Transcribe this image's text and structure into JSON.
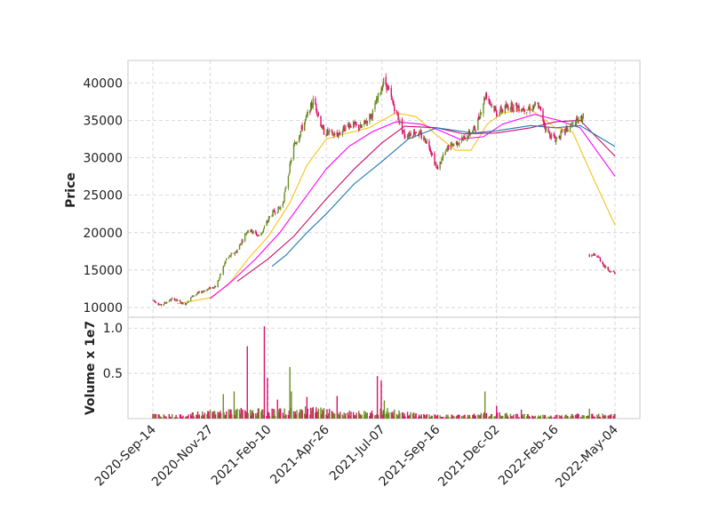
{
  "chart_data": {
    "type": "candlestick",
    "panels": [
      "price",
      "volume"
    ],
    "ylabel": "Price",
    "volume_ylabel": "Volume x 1e7",
    "x_ticks": [
      "2020-Sep-14",
      "2020-Nov-27",
      "2021-Feb-10",
      "2021-Apr-26",
      "2021-Jul-07",
      "2021-Sep-16",
      "2021-Dec-02",
      "2022-Feb-16",
      "2022-May-04"
    ],
    "y_ticks": [
      10000,
      15000,
      20000,
      25000,
      30000,
      35000,
      40000
    ],
    "ylim": [
      8700,
      43000
    ],
    "volume_ticks": [
      0.5,
      1.0
    ],
    "volume_ylim": [
      0,
      1.12
    ],
    "grid": true,
    "colors": {
      "up": "#6b8e23",
      "down": "#e0106e",
      "ma_short": "#f5c518",
      "ma_mid": "#ff00ff",
      "ma_long": "#c8106e",
      "ma_longest": "#1f77b4",
      "grid": "#cfcfcf",
      "frame": "#dcdcdc"
    },
    "price_path": [
      {
        "t": "2020-Sep-14",
        "v": 11000
      },
      {
        "t": "2020-Sep-24",
        "v": 10300
      },
      {
        "t": "2020-Oct-10",
        "v": 11200
      },
      {
        "t": "2020-Oct-25",
        "v": 10400
      },
      {
        "t": "2020-Nov-05",
        "v": 11600
      },
      {
        "t": "2020-Nov-20",
        "v": 12300
      },
      {
        "t": "2020-Dec-05",
        "v": 12900
      },
      {
        "t": "2020-Dec-18",
        "v": 16500
      },
      {
        "t": "2020-Dec-31",
        "v": 17500
      },
      {
        "t": "2021-Jan-15",
        "v": 20500
      },
      {
        "t": "2021-Jan-30",
        "v": 19500
      },
      {
        "t": "2021-Feb-14",
        "v": 22500
      },
      {
        "t": "2021-Feb-28",
        "v": 23500
      },
      {
        "t": "2021-Mar-15",
        "v": 31500
      },
      {
        "t": "2021-Mar-30",
        "v": 35000
      },
      {
        "t": "2021-Apr-10",
        "v": 37800
      },
      {
        "t": "2021-Apr-22",
        "v": 33500
      },
      {
        "t": "2021-May-10",
        "v": 33000
      },
      {
        "t": "2021-May-25",
        "v": 34500
      },
      {
        "t": "2021-Jun-10",
        "v": 34000
      },
      {
        "t": "2021-Jun-25",
        "v": 36000
      },
      {
        "t": "2021-Jul-10",
        "v": 40500
      },
      {
        "t": "2021-Jul-22",
        "v": 37000
      },
      {
        "t": "2021-Aug-05",
        "v": 33000
      },
      {
        "t": "2021-Aug-20",
        "v": 33500
      },
      {
        "t": "2021-Sep-05",
        "v": 32000
      },
      {
        "t": "2021-Sep-16",
        "v": 28500
      },
      {
        "t": "2021-Oct-01",
        "v": 31500
      },
      {
        "t": "2021-Oct-20",
        "v": 32500
      },
      {
        "t": "2021-Nov-05",
        "v": 34000
      },
      {
        "t": "2021-Nov-18",
        "v": 38500
      },
      {
        "t": "2021-Dec-02",
        "v": 36000
      },
      {
        "t": "2021-Dec-20",
        "v": 37000
      },
      {
        "t": "2022-Jan-10",
        "v": 36500
      },
      {
        "t": "2022-Jan-25",
        "v": 37000
      },
      {
        "t": "2022-Feb-05",
        "v": 33500
      },
      {
        "t": "2022-Feb-16",
        "v": 32500
      },
      {
        "t": "2022-Mar-05",
        "v": 34000
      },
      {
        "t": "2022-Mar-18",
        "v": 35000
      },
      {
        "t": "2022-Mar-24",
        "v": 35500
      }
    ],
    "price_path_after_gap": [
      {
        "t": "2022-Apr-01",
        "v": 17000
      },
      {
        "t": "2022-Apr-12",
        "v": 16800
      },
      {
        "t": "2022-Apr-22",
        "v": 15300
      },
      {
        "t": "2022-May-04",
        "v": 14500
      }
    ],
    "moving_averages": [
      {
        "name": "ma_short",
        "points": [
          {
            "t": "2020-Oct-15",
            "v": 10500
          },
          {
            "t": "2020-Nov-27",
            "v": 11300
          },
          {
            "t": "2020-Dec-20",
            "v": 13000
          },
          {
            "t": "2021-Jan-15",
            "v": 16500
          },
          {
            "t": "2021-Feb-10",
            "v": 19500
          },
          {
            "t": "2021-Mar-10",
            "v": 24000
          },
          {
            "t": "2021-Apr-01",
            "v": 29000
          },
          {
            "t": "2021-Apr-26",
            "v": 32500
          },
          {
            "t": "2021-May-20",
            "v": 33200
          },
          {
            "t": "2021-Jun-20",
            "v": 34000
          },
          {
            "t": "2021-Jul-25",
            "v": 36000
          },
          {
            "t": "2021-Aug-20",
            "v": 35500
          },
          {
            "t": "2021-Sep-16",
            "v": 33000
          },
          {
            "t": "2021-Oct-10",
            "v": 31000
          },
          {
            "t": "2021-Oct-30",
            "v": 31000
          },
          {
            "t": "2021-Nov-20",
            "v": 34500
          },
          {
            "t": "2021-Dec-10",
            "v": 36000
          },
          {
            "t": "2022-Jan-15",
            "v": 36500
          },
          {
            "t": "2022-Feb-16",
            "v": 34000
          },
          {
            "t": "2022-Mar-10",
            "v": 33500
          },
          {
            "t": "2022-Apr-05",
            "v": 27500
          },
          {
            "t": "2022-May-04",
            "v": 21000
          }
        ]
      },
      {
        "name": "ma_mid",
        "points": [
          {
            "t": "2020-Nov-27",
            "v": 11200
          },
          {
            "t": "2020-Dec-25",
            "v": 13500
          },
          {
            "t": "2021-Jan-25",
            "v": 16500
          },
          {
            "t": "2021-Feb-25",
            "v": 20000
          },
          {
            "t": "2021-Mar-25",
            "v": 24000
          },
          {
            "t": "2021-Apr-26",
            "v": 28500
          },
          {
            "t": "2021-May-25",
            "v": 31500
          },
          {
            "t": "2021-Jun-25",
            "v": 33500
          },
          {
            "t": "2021-Jul-25",
            "v": 34800
          },
          {
            "t": "2021-Aug-25",
            "v": 34500
          },
          {
            "t": "2021-Sep-16",
            "v": 33800
          },
          {
            "t": "2021-Oct-15",
            "v": 32500
          },
          {
            "t": "2021-Nov-15",
            "v": 32800
          },
          {
            "t": "2021-Dec-10",
            "v": 34500
          },
          {
            "t": "2022-Jan-20",
            "v": 35800
          },
          {
            "t": "2022-Feb-20",
            "v": 35000
          },
          {
            "t": "2022-Mar-20",
            "v": 34000
          },
          {
            "t": "2022-May-04",
            "v": 27500
          }
        ]
      },
      {
        "name": "ma_long",
        "points": [
          {
            "t": "2021-Jan-01",
            "v": 13500
          },
          {
            "t": "2021-Feb-10",
            "v": 16500
          },
          {
            "t": "2021-Mar-15",
            "v": 19500
          },
          {
            "t": "2021-Apr-26",
            "v": 24500
          },
          {
            "t": "2021-Jun-01",
            "v": 28500
          },
          {
            "t": "2021-Jul-07",
            "v": 32000
          },
          {
            "t": "2021-Aug-05",
            "v": 34200
          },
          {
            "t": "2021-Sep-16",
            "v": 34000
          },
          {
            "t": "2021-Oct-20",
            "v": 33200
          },
          {
            "t": "2021-Dec-02",
            "v": 33300
          },
          {
            "t": "2022-Jan-15",
            "v": 34000
          },
          {
            "t": "2022-Feb-16",
            "v": 34800
          },
          {
            "t": "2022-Mar-20",
            "v": 35000
          },
          {
            "t": "2022-May-04",
            "v": 30200
          }
        ]
      },
      {
        "name": "ma_longest",
        "points": [
          {
            "t": "2021-Feb-15",
            "v": 15500
          },
          {
            "t": "2021-Mar-05",
            "v": 17000
          },
          {
            "t": "2021-Apr-01",
            "v": 20000
          },
          {
            "t": "2021-Apr-26",
            "v": 22500
          },
          {
            "t": "2021-Jun-01",
            "v": 26500
          },
          {
            "t": "2021-Jul-07",
            "v": 29500
          },
          {
            "t": "2021-Aug-10",
            "v": 32500
          },
          {
            "t": "2021-Sep-16",
            "v": 34000
          },
          {
            "t": "2021-Nov-01",
            "v": 33300
          },
          {
            "t": "2021-Dec-02",
            "v": 33600
          },
          {
            "t": "2022-Jan-15",
            "v": 34300
          },
          {
            "t": "2022-Feb-16",
            "v": 34000
          },
          {
            "t": "2022-Mar-20",
            "v": 34300
          },
          {
            "t": "2022-May-04",
            "v": 31500
          }
        ]
      }
    ],
    "volume_path": [
      {
        "t": "2020-Sep-14",
        "v": 0.04
      },
      {
        "t": "2020-Oct-20",
        "v": 0.03
      },
      {
        "t": "2020-Nov-20",
        "v": 0.06
      },
      {
        "t": "2020-Dec-10",
        "v": 0.07
      },
      {
        "t": "2021-Jan-10",
        "v": 0.08
      },
      {
        "t": "2021-Feb-10",
        "v": 0.07
      },
      {
        "t": "2021-Mar-10",
        "v": 0.08
      },
      {
        "t": "2021-Apr-10",
        "v": 0.09
      },
      {
        "t": "2021-May-10",
        "v": 0.06
      },
      {
        "t": "2021-Jun-10",
        "v": 0.06
      },
      {
        "t": "2021-Jul-10",
        "v": 0.08
      },
      {
        "t": "2021-Aug-10",
        "v": 0.05
      },
      {
        "t": "2021-Sep-16",
        "v": 0.03
      },
      {
        "t": "2021-Oct-20",
        "v": 0.03
      },
      {
        "t": "2021-Nov-20",
        "v": 0.05
      },
      {
        "t": "2021-Dec-20",
        "v": 0.04
      },
      {
        "t": "2022-Jan-20",
        "v": 0.03
      },
      {
        "t": "2022-Feb-20",
        "v": 0.03
      },
      {
        "t": "2022-Mar-20",
        "v": 0.04
      },
      {
        "t": "2022-May-04",
        "v": 0.05
      }
    ],
    "volume_spikes": [
      {
        "t": "2020-Dec-14",
        "v": 0.27
      },
      {
        "t": "2020-Dec-28",
        "v": 0.3
      },
      {
        "t": "2021-Jan-14",
        "v": 0.8
      },
      {
        "t": "2021-Feb-05",
        "v": 1.02
      },
      {
        "t": "2021-Feb-09",
        "v": 0.45
      },
      {
        "t": "2021-Feb-22",
        "v": 0.21
      },
      {
        "t": "2021-Mar-10",
        "v": 0.57
      },
      {
        "t": "2021-Mar-12",
        "v": 0.3
      },
      {
        "t": "2021-Apr-01",
        "v": 0.24
      },
      {
        "t": "2021-May-10",
        "v": 0.25
      },
      {
        "t": "2021-Jul-01",
        "v": 0.47
      },
      {
        "t": "2021-Jul-06",
        "v": 0.42
      },
      {
        "t": "2021-Jul-10",
        "v": 0.2
      },
      {
        "t": "2021-Nov-17",
        "v": 0.3
      },
      {
        "t": "2021-Dec-02",
        "v": 0.14
      },
      {
        "t": "2022-Jan-03",
        "v": 0.1
      },
      {
        "t": "2022-Apr-01",
        "v": 0.11
      }
    ]
  }
}
